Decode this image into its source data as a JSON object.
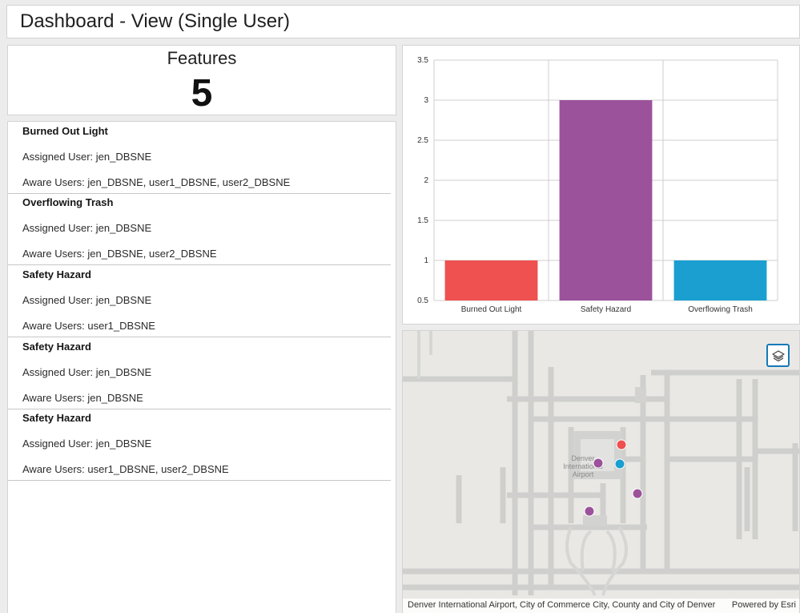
{
  "header": {
    "title": "Dashboard - View (Single User)"
  },
  "indicator": {
    "title": "Features",
    "value": "5"
  },
  "list": {
    "items": [
      {
        "title": "Burned Out Light",
        "assigned": "Assigned User: jen_DBSNE",
        "aware": "Aware Users: jen_DBSNE, user1_DBSNE, user2_DBSNE"
      },
      {
        "title": "Overflowing Trash",
        "assigned": "Assigned User: jen_DBSNE",
        "aware": "Aware Users: jen_DBSNE, user2_DBSNE"
      },
      {
        "title": "Safety Hazard",
        "assigned": "Assigned User: jen_DBSNE",
        "aware": "Aware Users: user1_DBSNE"
      },
      {
        "title": "Safety Hazard",
        "assigned": "Assigned User: jen_DBSNE",
        "aware": "Aware Users: jen_DBSNE"
      },
      {
        "title": "Safety Hazard",
        "assigned": "Assigned User: jen_DBSNE",
        "aware": "Aware Users: user1_DBSNE, user2_DBSNE"
      }
    ]
  },
  "chart_data": {
    "type": "bar",
    "categories": [
      "Burned Out Light",
      "Safety Hazard",
      "Overflowing Trash"
    ],
    "values": [
      1,
      3,
      1
    ],
    "colors": [
      "#ef5050",
      "#9b529b",
      "#1a9fd0"
    ],
    "yticks": [
      "3.5",
      "3",
      "2.5",
      "2",
      "1.5",
      "1",
      "0.5"
    ],
    "ylim": [
      0.5,
      3.5
    ],
    "title": "",
    "xlabel": "",
    "ylabel": ""
  },
  "map": {
    "place_label_line1": "Denver",
    "place_label_line2": "International",
    "place_label_line3": "Airport",
    "attribution": "Denver International Airport, City of Commerce City, County and City of Denver",
    "powered_by": "Powered by Esri",
    "layers_icon": "layers-icon",
    "point_colors": {
      "burned_out_light": "#ef5050",
      "overflowing_trash": "#1a9fd0",
      "safety_hazard": "#9b529b"
    }
  }
}
